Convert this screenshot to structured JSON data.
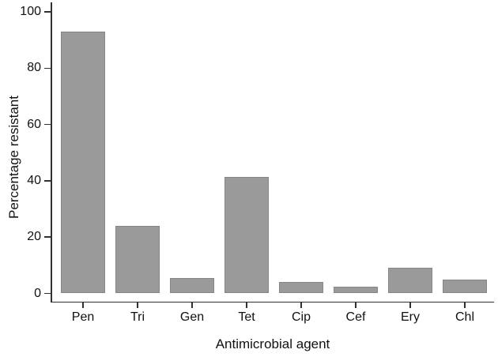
{
  "chart_data": {
    "type": "bar",
    "title": "",
    "xlabel": "Antimicrobial agent",
    "ylabel": "Percentage resistant",
    "categories": [
      "Pen",
      "Tri",
      "Gen",
      "Tet",
      "Cip",
      "Cef",
      "Ery",
      "Chl"
    ],
    "values": [
      93,
      24,
      5.5,
      41.5,
      4,
      2.5,
      9,
      5
    ],
    "ylim": [
      0,
      100
    ],
    "yticks": [
      0,
      20,
      40,
      60,
      80,
      100
    ],
    "grid": false,
    "legend": "none",
    "bar_fill_color": "#9a9a9a",
    "bar_border_color": "#868686",
    "axis_color": "#303030",
    "text_color": "#111111"
  }
}
